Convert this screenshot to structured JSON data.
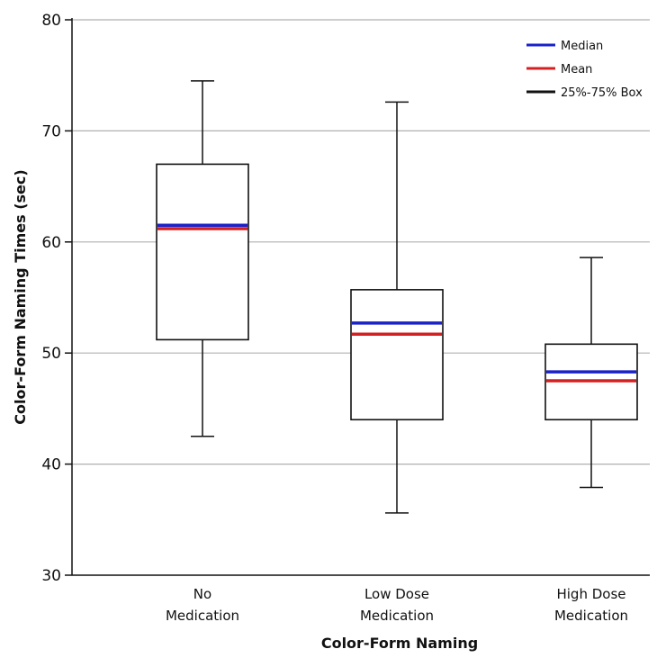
{
  "chart_data": {
    "type": "box",
    "xlabel": "Color-Form Naming",
    "ylabel": "Color-Form Naming Times (sec)",
    "ylim": [
      30,
      80
    ],
    "yticks": [
      30,
      40,
      50,
      60,
      70,
      80
    ],
    "grid": true,
    "legend_position": "top-right",
    "categories": [
      [
        "No",
        "Medication"
      ],
      [
        "Low Dose",
        "Medication"
      ],
      [
        "High Dose",
        "Medication"
      ]
    ],
    "boxes": [
      {
        "min": 42.5,
        "q1": 51.2,
        "median": 61.5,
        "mean": 61.2,
        "q3": 67.0,
        "max": 74.5
      },
      {
        "min": 35.6,
        "q1": 44.0,
        "median": 52.7,
        "mean": 51.7,
        "q3": 55.7,
        "max": 72.6
      },
      {
        "min": 37.9,
        "q1": 44.0,
        "median": 48.3,
        "mean": 47.5,
        "q3": 50.8,
        "max": 58.6
      }
    ],
    "legend": [
      {
        "label": "Median",
        "color": "#1a22c8"
      },
      {
        "label": "Mean",
        "color": "#d42020"
      },
      {
        "label": "25%-75% Box",
        "color": "#111111"
      }
    ],
    "colors": {
      "median": "#1a22c8",
      "mean": "#d42020",
      "box": "#111111",
      "grid": "#b0b0b0"
    }
  }
}
